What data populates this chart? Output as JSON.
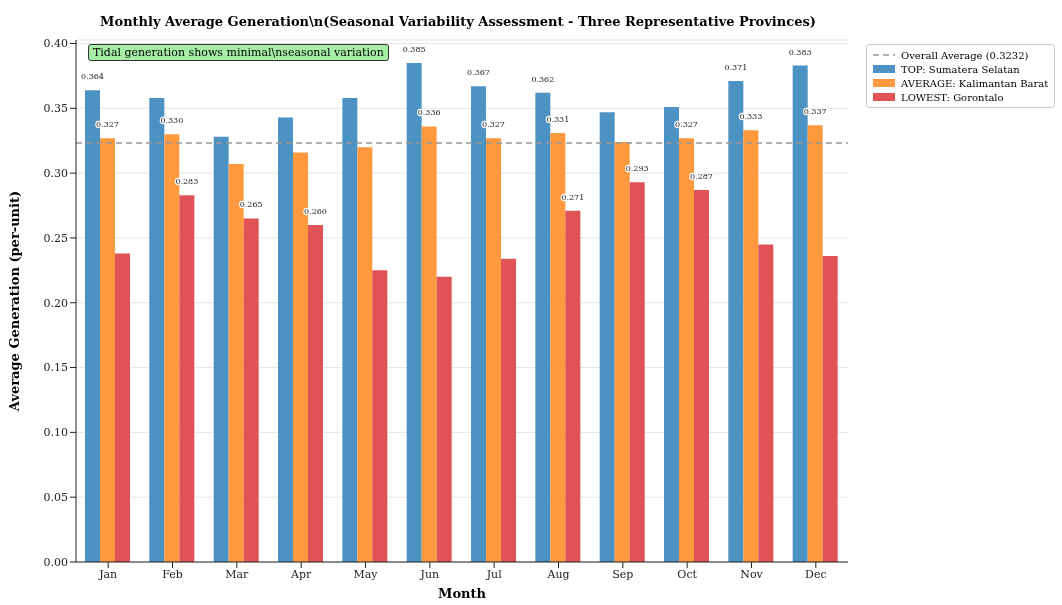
{
  "chart_data": {
    "type": "bar",
    "title": "Monthly Average Generation\\n(Seasonal Variability Assessment - Three Representative Provinces)",
    "xlabel": "Month",
    "ylabel": "Average Generation (per-unit)",
    "categories": [
      "Jan",
      "Feb",
      "Mar",
      "Apr",
      "May",
      "Jun",
      "Jul",
      "Aug",
      "Sep",
      "Oct",
      "Nov",
      "Dec"
    ],
    "series": [
      {
        "name": "TOP: Sumatera Selatan",
        "color": "#4c92c3",
        "values": [
          0.364,
          0.358,
          0.328,
          0.343,
          0.358,
          0.385,
          0.367,
          0.362,
          0.347,
          0.351,
          0.371,
          0.383
        ],
        "value_labels": [
          "0.364",
          null,
          null,
          null,
          null,
          "0.385",
          "0.367",
          "0.362",
          null,
          null,
          "0.371",
          "0.383"
        ]
      },
      {
        "name": "AVERAGE: Kalimantan Barat",
        "color": "#ff993e",
        "values": [
          0.327,
          0.33,
          0.307,
          0.316,
          0.32,
          0.336,
          0.327,
          0.331,
          0.324,
          0.327,
          0.333,
          0.337
        ],
        "value_labels": [
          "0.327",
          "0.330",
          null,
          null,
          null,
          "0.336",
          "0.327",
          "0.331",
          null,
          "0.327",
          "0.333",
          "0.337"
        ]
      },
      {
        "name": "LOWEST: Gorontalo",
        "color": "#df5356",
        "values": [
          0.238,
          0.283,
          0.265,
          0.26,
          0.225,
          0.22,
          0.234,
          0.271,
          0.293,
          0.287,
          0.245,
          0.236
        ],
        "value_labels": [
          null,
          "0.283",
          "0.265",
          "0.260",
          null,
          null,
          null,
          "0.271",
          "0.293",
          "0.287",
          null,
          null
        ]
      }
    ],
    "ylim": [
      0,
      0.4027
    ],
    "yticks": [
      {
        "value": 0,
        "label": "0.00"
      },
      {
        "value": 0.05,
        "label": "0.05"
      },
      {
        "value": 0.1,
        "label": "0.10"
      },
      {
        "value": 0.15,
        "label": "0.15"
      },
      {
        "value": 0.2,
        "label": "0.20"
      },
      {
        "value": 0.25,
        "label": "0.25"
      },
      {
        "value": 0.3,
        "label": "0.30"
      },
      {
        "value": 0.35,
        "label": "0.35"
      },
      {
        "value": 0.4,
        "label": "0.40"
      }
    ],
    "ref_lines": [
      {
        "axis": "y",
        "value": 0.3232,
        "label": "Overall Average (0.3232)",
        "color": "#999999",
        "line_style": "dashed"
      }
    ],
    "annotations": [
      "Tidal generation shows minimal\\nseasonal variation"
    ],
    "grid": "y",
    "legend": "top right"
  }
}
